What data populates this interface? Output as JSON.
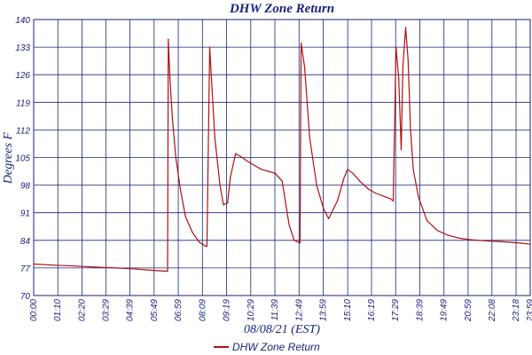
{
  "chart_data": {
    "type": "line",
    "title": "DHW Zone Return",
    "xlabel": "08/08/21 (EST)",
    "ylabel": "Degrees F",
    "ylim": [
      70,
      140
    ],
    "yticks": [
      70,
      77,
      84,
      91,
      98,
      105,
      112,
      119,
      126,
      133,
      140
    ],
    "xlim": [
      "00:00",
      "23:59"
    ],
    "xticks": [
      "00:00",
      "01:10",
      "02:20",
      "03:29",
      "04:39",
      "05:49",
      "06:59",
      "08:09",
      "09:19",
      "10:29",
      "11:39",
      "12:49",
      "13:59",
      "15:10",
      "16:19",
      "17:29",
      "18:39",
      "19:49",
      "20:59",
      "22:08",
      "23:18",
      "23:59"
    ],
    "grid": true,
    "legend_position": "bottom-center",
    "colors": {
      "series": "#b01010",
      "grid": "#1a237e",
      "text": "#1a237e"
    },
    "series": [
      {
        "name": "DHW Zone Return",
        "x": [
          "00:00",
          "01:00",
          "02:00",
          "03:00",
          "04:00",
          "05:00",
          "05:30",
          "06:00",
          "06:20",
          "06:28",
          "06:30",
          "06:35",
          "06:42",
          "06:52",
          "07:05",
          "07:20",
          "07:40",
          "08:00",
          "08:10",
          "08:18",
          "08:22",
          "08:30",
          "08:45",
          "09:00",
          "09:10",
          "09:22",
          "09:30",
          "09:45",
          "10:05",
          "10:20",
          "10:40",
          "11:00",
          "11:20",
          "11:40",
          "12:00",
          "12:20",
          "12:35",
          "12:48",
          "12:52",
          "12:55",
          "13:05",
          "13:20",
          "13:40",
          "14:00",
          "14:15",
          "14:40",
          "15:00",
          "15:10",
          "15:25",
          "15:45",
          "16:10",
          "16:30",
          "17:00",
          "17:15",
          "17:22",
          "17:30",
          "17:38",
          "17:45",
          "17:50",
          "17:58",
          "18:05",
          "18:12",
          "18:20",
          "18:35",
          "19:00",
          "19:30",
          "20:00",
          "20:30",
          "21:00",
          "21:30",
          "22:00",
          "22:30",
          "23:00",
          "23:30",
          "23:59"
        ],
        "y": [
          78,
          77.7,
          77.5,
          77.2,
          77,
          76.7,
          76.5,
          76.3,
          76.2,
          76.2,
          135,
          125,
          115,
          105,
          97,
          90,
          86,
          83.5,
          83,
          82.5,
          82.5,
          133,
          110,
          98,
          93,
          93.5,
          100,
          106,
          105,
          104,
          103,
          102,
          101.5,
          101,
          99,
          88,
          84,
          83.5,
          83.3,
          134,
          128,
          110,
          98,
          92,
          89.5,
          94,
          100,
          102,
          101,
          99,
          97,
          96,
          95,
          94.5,
          94,
          133,
          125,
          107,
          128,
          138,
          130,
          112,
          102,
          95,
          89,
          86.5,
          85.3,
          84.6,
          84.2,
          84,
          83.8,
          83.7,
          83.5,
          83.3,
          83
        ]
      }
    ]
  }
}
